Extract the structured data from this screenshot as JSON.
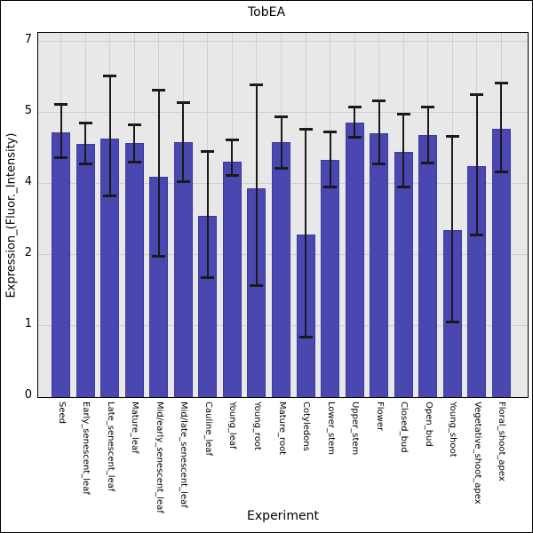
{
  "title": "TobEA",
  "colors": {
    "bar_fill": "#4b47b0",
    "bar_border": "#3c3a9b",
    "plot_background": "#e8e8e8",
    "grid": "#cfcfcf",
    "error_bar": "#1a1a1a",
    "axis": "#000000",
    "page_background": "#ffffff"
  },
  "chart_data": {
    "type": "bar",
    "title": "TobEA",
    "xlabel": "Experiment",
    "ylabel": "Expression_(Fluor._Intensity)",
    "grid": true,
    "legend": false,
    "ytick_values": [
      0,
      1,
      2,
      4,
      5,
      7
    ],
    "ytick_labels": [
      "0",
      "1",
      "2",
      "4",
      "5",
      "7"
    ],
    "categories": [
      "Seed",
      "Early_senescent_leaf",
      "Late_senescent_leaf",
      "Mature_leaf",
      "Mid/early_senescent_leaf",
      "Mid/late_senescent_leaf",
      "Cauline_leaf",
      "Young_leaf",
      "Young_root",
      "Mature_root",
      "Cotyledons",
      "Lower_stem",
      "Upper_stem",
      "Flower",
      "Closed_bud",
      "Open_bud",
      "Young_shoot",
      "Vegetative_shoot_apex",
      "Floral_shoot_apex"
    ],
    "values": [
      4.71,
      4.55,
      4.63,
      4.56,
      4.09,
      4.57,
      3.08,
      4.3,
      3.86,
      4.57,
      2.56,
      4.32,
      4.85,
      4.7,
      4.44,
      4.67,
      2.67,
      4.24,
      4.76
    ],
    "error_high": [
      5.22,
      4.85,
      6.03,
      4.82,
      5.63,
      5.27,
      4.45,
      4.61,
      5.78,
      4.94,
      4.76,
      4.72,
      5.15,
      5.32,
      4.97,
      5.15,
      4.66,
      5.49,
      5.83
    ],
    "error_low": [
      4.36,
      4.27,
      3.65,
      4.3,
      1.97,
      4.02,
      1.68,
      4.11,
      1.56,
      4.21,
      0.84,
      3.89,
      4.65,
      4.27,
      3.89,
      4.29,
      1.05,
      2.54,
      4.16
    ]
  }
}
